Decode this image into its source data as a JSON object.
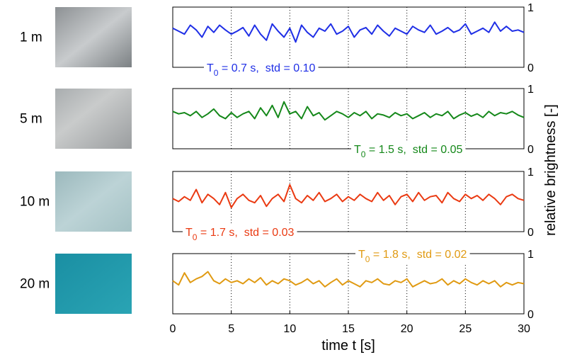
{
  "chart_data": [
    {
      "type": "line",
      "label": "1 m",
      "color": "#1f2fe6",
      "annotation": {
        "main": "T",
        "sub": "0",
        "rest": " = 0.7 s,  std = 0.10"
      },
      "x": [
        0,
        0.5,
        1,
        1.5,
        2,
        2.5,
        3,
        3.5,
        4,
        4.5,
        5,
        5.5,
        6,
        6.5,
        7,
        7.5,
        8,
        8.5,
        9,
        9.5,
        10,
        10.5,
        11,
        11.5,
        12,
        12.5,
        13,
        13.5,
        14,
        14.5,
        15,
        15.5,
        16,
        16.5,
        17,
        17.5,
        18,
        18.5,
        19,
        19.5,
        20,
        20.5,
        21,
        21.5,
        22,
        22.5,
        23,
        23.5,
        24,
        24.5,
        25,
        25.5,
        26,
        26.5,
        27,
        27.5,
        28,
        28.5,
        29,
        29.5,
        30
      ],
      "values": [
        0.65,
        0.6,
        0.55,
        0.7,
        0.62,
        0.5,
        0.68,
        0.58,
        0.7,
        0.62,
        0.55,
        0.6,
        0.66,
        0.52,
        0.7,
        0.55,
        0.45,
        0.72,
        0.6,
        0.5,
        0.65,
        0.42,
        0.7,
        0.58,
        0.5,
        0.65,
        0.6,
        0.72,
        0.55,
        0.6,
        0.68,
        0.5,
        0.62,
        0.66,
        0.55,
        0.7,
        0.6,
        0.52,
        0.65,
        0.6,
        0.55,
        0.68,
        0.62,
        0.58,
        0.7,
        0.55,
        0.6,
        0.66,
        0.58,
        0.62,
        0.72,
        0.55,
        0.6,
        0.65,
        0.58,
        0.75,
        0.6,
        0.68,
        0.6,
        0.62,
        0.58
      ],
      "xlim": [
        0,
        30
      ],
      "xticks": [
        0,
        5,
        10,
        15,
        20,
        25,
        30
      ],
      "ylim": [
        0,
        1
      ],
      "yticks": [
        0,
        1
      ]
    },
    {
      "type": "line",
      "label": "5 m",
      "color": "#15881a",
      "annotation": {
        "main": "T",
        "sub": "0",
        "rest": " = 1.5 s,  std = 0.05"
      },
      "x": [
        0,
        0.5,
        1,
        1.5,
        2,
        2.5,
        3,
        3.5,
        4,
        4.5,
        5,
        5.5,
        6,
        6.5,
        7,
        7.5,
        8,
        8.5,
        9,
        9.5,
        10,
        10.5,
        11,
        11.5,
        12,
        12.5,
        13,
        13.5,
        14,
        14.5,
        15,
        15.5,
        16,
        16.5,
        17,
        17.5,
        18,
        18.5,
        19,
        19.5,
        20,
        20.5,
        21,
        21.5,
        22,
        22.5,
        23,
        23.5,
        24,
        24.5,
        25,
        25.5,
        26,
        26.5,
        27,
        27.5,
        28,
        28.5,
        29,
        29.5,
        30
      ],
      "values": [
        0.62,
        0.58,
        0.6,
        0.55,
        0.62,
        0.52,
        0.58,
        0.66,
        0.55,
        0.5,
        0.6,
        0.52,
        0.58,
        0.62,
        0.5,
        0.68,
        0.55,
        0.72,
        0.52,
        0.78,
        0.58,
        0.62,
        0.5,
        0.7,
        0.55,
        0.6,
        0.48,
        0.55,
        0.62,
        0.58,
        0.52,
        0.6,
        0.55,
        0.62,
        0.5,
        0.58,
        0.56,
        0.52,
        0.6,
        0.55,
        0.58,
        0.5,
        0.55,
        0.6,
        0.52,
        0.58,
        0.55,
        0.62,
        0.5,
        0.56,
        0.6,
        0.54,
        0.58,
        0.52,
        0.62,
        0.55,
        0.6,
        0.58,
        0.62,
        0.56,
        0.52
      ],
      "xlim": [
        0,
        30
      ],
      "xticks": [
        0,
        5,
        10,
        15,
        20,
        25,
        30
      ],
      "ylim": [
        0,
        1
      ],
      "yticks": [
        0,
        1
      ]
    },
    {
      "type": "line",
      "label": "10 m",
      "color": "#ea3a12",
      "annotation": {
        "main": "T",
        "sub": "0",
        "rest": " = 1.7 s,  std = 0.03"
      },
      "x": [
        0,
        0.5,
        1,
        1.5,
        2,
        2.5,
        3,
        3.5,
        4,
        4.5,
        5,
        5.5,
        6,
        6.5,
        7,
        7.5,
        8,
        8.5,
        9,
        9.5,
        10,
        10.5,
        11,
        11.5,
        12,
        12.5,
        13,
        13.5,
        14,
        14.5,
        15,
        15.5,
        16,
        16.5,
        17,
        17.5,
        18,
        18.5,
        19,
        19.5,
        20,
        20.5,
        21,
        21.5,
        22,
        22.5,
        23,
        23.5,
        24,
        24.5,
        25,
        25.5,
        26,
        26.5,
        27,
        27.5,
        28,
        28.5,
        29,
        29.5,
        30
      ],
      "values": [
        0.55,
        0.5,
        0.58,
        0.52,
        0.7,
        0.48,
        0.62,
        0.55,
        0.45,
        0.65,
        0.4,
        0.55,
        0.62,
        0.52,
        0.48,
        0.6,
        0.42,
        0.55,
        0.62,
        0.5,
        0.78,
        0.55,
        0.48,
        0.6,
        0.52,
        0.65,
        0.5,
        0.55,
        0.62,
        0.5,
        0.58,
        0.52,
        0.62,
        0.55,
        0.5,
        0.65,
        0.52,
        0.6,
        0.45,
        0.58,
        0.62,
        0.5,
        0.65,
        0.52,
        0.58,
        0.6,
        0.48,
        0.65,
        0.55,
        0.5,
        0.62,
        0.55,
        0.6,
        0.52,
        0.62,
        0.55,
        0.45,
        0.58,
        0.62,
        0.55,
        0.52
      ],
      "xlim": [
        0,
        30
      ],
      "xticks": [
        0,
        5,
        10,
        15,
        20,
        25,
        30
      ],
      "ylim": [
        0,
        1
      ],
      "yticks": [
        0,
        1
      ]
    },
    {
      "type": "line",
      "label": "20 m",
      "color": "#e09a12",
      "annotation": {
        "main": "T",
        "sub": "0",
        "rest": " = 1.8 s,  std = 0.02"
      },
      "x": [
        0,
        0.5,
        1,
        1.5,
        2,
        2.5,
        3,
        3.5,
        4,
        4.5,
        5,
        5.5,
        6,
        6.5,
        7,
        7.5,
        8,
        8.5,
        9,
        9.5,
        10,
        10.5,
        11,
        11.5,
        12,
        12.5,
        13,
        13.5,
        14,
        14.5,
        15,
        15.5,
        16,
        16.5,
        17,
        17.5,
        18,
        18.5,
        19,
        19.5,
        20,
        20.5,
        21,
        21.5,
        22,
        22.5,
        23,
        23.5,
        24,
        24.5,
        25,
        25.5,
        26,
        26.5,
        27,
        27.5,
        28,
        28.5,
        29,
        29.5,
        30
      ],
      "values": [
        0.55,
        0.48,
        0.68,
        0.52,
        0.58,
        0.62,
        0.7,
        0.55,
        0.5,
        0.58,
        0.52,
        0.55,
        0.5,
        0.58,
        0.52,
        0.6,
        0.48,
        0.55,
        0.5,
        0.58,
        0.55,
        0.48,
        0.52,
        0.58,
        0.5,
        0.55,
        0.45,
        0.52,
        0.58,
        0.48,
        0.55,
        0.5,
        0.45,
        0.55,
        0.52,
        0.58,
        0.5,
        0.48,
        0.55,
        0.52,
        0.58,
        0.45,
        0.5,
        0.55,
        0.5,
        0.52,
        0.58,
        0.48,
        0.55,
        0.5,
        0.58,
        0.52,
        0.48,
        0.55,
        0.5,
        0.55,
        0.45,
        0.52,
        0.48,
        0.52,
        0.5
      ],
      "xlim": [
        0,
        30
      ],
      "xticks": [
        0,
        5,
        10,
        15,
        20,
        25,
        30
      ],
      "ylim": [
        0,
        1
      ],
      "yticks": [
        0,
        1
      ]
    }
  ],
  "xlabel": "time  t [s]",
  "ylabel": "relative brightness  [-]"
}
